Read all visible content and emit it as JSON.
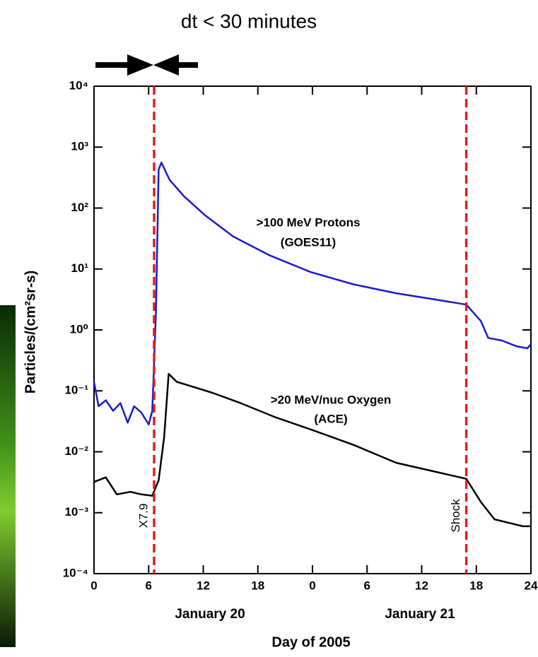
{
  "chart_data": {
    "type": "line",
    "annotation": "dt < 30 minutes",
    "xlabel": "Day of 2005",
    "ylabel": "Particles/(cm²sr-s)",
    "day_labels": [
      "January 20",
      "January 21"
    ],
    "log_y": true,
    "xlim": [
      0,
      48
    ],
    "xticks": [
      0,
      6,
      12,
      18,
      {
        "value": 24,
        "label": "0"
      },
      {
        "value": 30,
        "label": "6"
      },
      {
        "value": 36,
        "label": "12"
      },
      {
        "value": 42,
        "label": "18"
      },
      {
        "value": 48,
        "label": "24"
      }
    ],
    "ylim": [
      0.0001,
      10000
    ],
    "yticks": [
      {
        "value": 0.0001,
        "label": "10⁻⁴"
      },
      {
        "value": 0.001,
        "label": "10⁻³"
      },
      {
        "value": 0.01,
        "label": "10⁻²"
      },
      {
        "value": 0.1,
        "label": "10⁻¹"
      },
      {
        "value": 1,
        "label": "10⁰"
      },
      {
        "value": 10,
        "label": "10¹"
      },
      {
        "value": 100,
        "label": "10²"
      },
      {
        "value": 1000,
        "label": "10³"
      },
      {
        "value": 10000,
        "label": "10⁴"
      }
    ],
    "events": [
      {
        "x": 6.6,
        "label": "X7.9",
        "color": "#e0201b"
      },
      {
        "x": 40.9,
        "label": "Shock",
        "color": "#e0201b"
      }
    ],
    "series": [
      {
        "name": ">100 MeV Protons",
        "label_note": "(GOES11)",
        "color": "#1a1acc",
        "x": [
          0,
          0.5,
          1.3,
          2.1,
          2.9,
          3.7,
          4.4,
          5.2,
          6.0,
          6.4,
          6.8,
          7.1,
          7.4,
          8.3,
          9.9,
          12.2,
          15.3,
          19.2,
          23.8,
          28.5,
          33.2,
          37.8,
          40.9,
          42.5,
          43.3,
          44.8,
          46.4,
          47.6,
          48
        ],
        "values": [
          0.14,
          0.056,
          0.07,
          0.047,
          0.063,
          0.03,
          0.056,
          0.044,
          0.028,
          0.047,
          2.0,
          430,
          560,
          290,
          155,
          76,
          34,
          17,
          8.9,
          5.6,
          4.0,
          3.1,
          2.6,
          1.4,
          0.74,
          0.67,
          0.54,
          0.5,
          0.58
        ]
      },
      {
        "name": ">20 MeV/nuc Oxygen",
        "label_note": "(ACE)",
        "color": "#000000",
        "x": [
          0,
          1.3,
          2.5,
          4.0,
          5.2,
          6.4,
          7.1,
          7.7,
          8.2,
          9.1,
          10.6,
          13.0,
          16.1,
          19.9,
          23.9,
          28.5,
          33.2,
          37.8,
          40.9,
          42.5,
          44.0,
          45.6,
          47.1,
          48
        ],
        "values": [
          0.0032,
          0.0038,
          0.002,
          0.0022,
          0.002,
          0.0019,
          0.0034,
          0.017,
          0.19,
          0.14,
          0.12,
          0.093,
          0.063,
          0.037,
          0.023,
          0.013,
          0.0066,
          0.0046,
          0.0036,
          0.0015,
          0.00078,
          0.00068,
          0.0006,
          0.0006
        ]
      }
    ]
  }
}
